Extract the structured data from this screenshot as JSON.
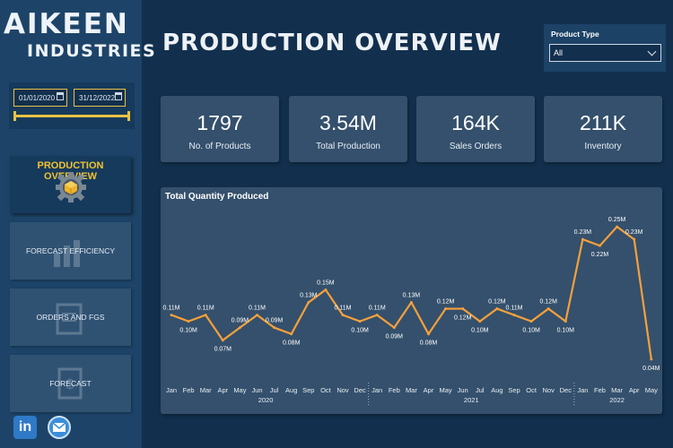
{
  "brand": {
    "line1": "AIKEEN",
    "line2": "INDUSTRIES"
  },
  "date_range": {
    "start": "01/01/2020",
    "end": "31/12/2022"
  },
  "nav": [
    {
      "label": "PRODUCTION OVERVIEW",
      "icon": "gear-box-icon",
      "active": true
    },
    {
      "label": "FORECAST EFFICIENCY",
      "icon": "forecast-chart-icon",
      "active": false
    },
    {
      "label": "ORDERS AND FGS",
      "icon": "orders-clipboard-icon",
      "active": false
    },
    {
      "label": "FORECAST",
      "icon": "dollar-document-icon",
      "active": false
    }
  ],
  "social": {
    "linkedin_icon": "linkedin-icon",
    "linkedin_text": "in",
    "mail_icon": "mail-icon"
  },
  "page_title": "PRODUCTION OVERVIEW",
  "filter": {
    "label": "Product Type",
    "value": "All"
  },
  "kpis": [
    {
      "value": "1797",
      "label": "No. of Products"
    },
    {
      "value": "3.54M",
      "label": "Total Production"
    },
    {
      "value": "164K",
      "label": "Sales Orders"
    },
    {
      "value": "211K",
      "label": "Inventory"
    }
  ],
  "colors": {
    "accent": "#f1c232",
    "line": "#f5a03c",
    "panel": "#34506c",
    "background": "#12304e"
  },
  "chart_data": {
    "type": "line",
    "title": "Total Quantity Produced",
    "x": [
      "Jan",
      "Feb",
      "Mar",
      "Apr",
      "May",
      "Jun",
      "Jul",
      "Aug",
      "Sep",
      "Oct",
      "Nov",
      "Dec",
      "Jan",
      "Feb",
      "Mar",
      "Apr",
      "May",
      "Jun",
      "Jul",
      "Aug",
      "Sep",
      "Oct",
      "Nov",
      "Dec",
      "Jan",
      "Feb",
      "Mar",
      "Apr",
      "May"
    ],
    "years": [
      {
        "label": "2020",
        "start": 0,
        "end": 11
      },
      {
        "label": "2021",
        "start": 12,
        "end": 23
      },
      {
        "label": "2022",
        "start": 24,
        "end": 28
      }
    ],
    "values": [
      0.11,
      0.1,
      0.11,
      0.07,
      0.09,
      0.11,
      0.09,
      0.08,
      0.13,
      0.15,
      0.11,
      0.1,
      0.11,
      0.09,
      0.13,
      0.08,
      0.12,
      0.12,
      0.1,
      0.12,
      0.11,
      0.1,
      0.12,
      0.1,
      0.23,
      0.22,
      0.25,
      0.23,
      0.04
    ],
    "data_labels": [
      "0.11M",
      "0.10M",
      "0.11M",
      "0.07M",
      "0.09M",
      "0.11M",
      "0.09M",
      "0.08M",
      "0.13M",
      "0.15M",
      "0.11M",
      "0.10M",
      "0.11M",
      "0.09M",
      "0.13M",
      "0.08M",
      "0.12M",
      "0.12M",
      "0.10M",
      "0.12M",
      "0.11M",
      "0.10M",
      "0.12M",
      "0.10M",
      "0.23M",
      "0.22M",
      "0.25M",
      "0.23M",
      "0.04M"
    ],
    "label_position": [
      "above",
      "below",
      "above",
      "below",
      "above",
      "above",
      "above",
      "below",
      "above",
      "above",
      "above",
      "below",
      "above",
      "below",
      "above",
      "below",
      "above",
      "below",
      "below",
      "above",
      "above",
      "below",
      "above",
      "below",
      "above",
      "below",
      "above",
      "above",
      "below"
    ],
    "ylim": [
      0,
      0.27
    ],
    "grid": false
  }
}
